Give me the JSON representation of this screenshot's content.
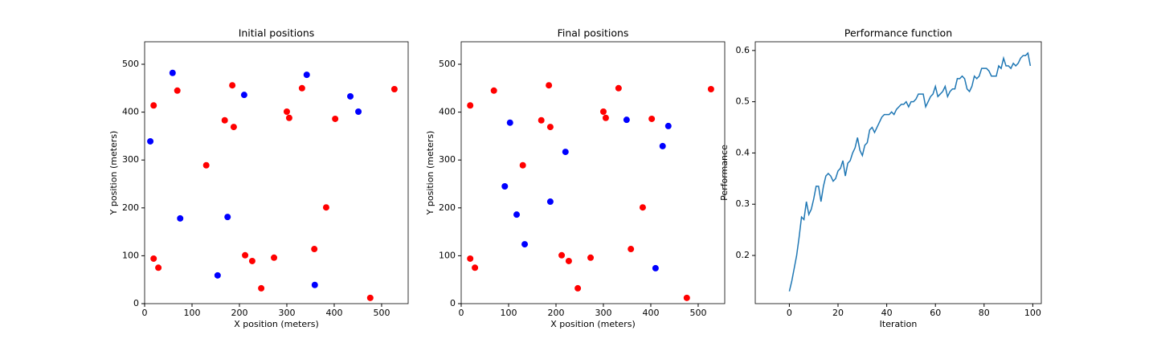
{
  "chart_data": [
    {
      "type": "scatter",
      "title": "Initial positions",
      "x_label": "X position (meters)",
      "y_label": "Y position (meters)",
      "xlim": [
        0,
        556
      ],
      "ylim": [
        0,
        547
      ],
      "xticks": [
        0,
        100,
        200,
        300,
        400,
        500
      ],
      "yticks": [
        0,
        100,
        200,
        300,
        400,
        500
      ],
      "series": [
        {
          "color": "#ff0000",
          "x": [
            19,
            69,
            185,
            169,
            188,
            130,
            300,
            305,
            332,
            402,
            527,
            383,
            358,
            19,
            29,
            212,
            227,
            273,
            246,
            476
          ],
          "y": [
            414,
            445,
            456,
            383,
            369,
            289,
            401,
            388,
            450,
            386,
            448,
            201,
            114,
            94,
            75,
            101,
            89,
            96,
            32,
            12
          ]
        },
        {
          "color": "#0000ff",
          "x": [
            59,
            210,
            342,
            434,
            451,
            12,
            75,
            175,
            154,
            359
          ],
          "y": [
            482,
            436,
            478,
            433,
            401,
            339,
            178,
            181,
            59,
            39
          ]
        }
      ]
    },
    {
      "type": "scatter",
      "title": "Final positions",
      "x_label": "X position (meters)",
      "y_label": "Y position (meters)",
      "xlim": [
        0,
        556
      ],
      "ylim": [
        0,
        547
      ],
      "xticks": [
        0,
        100,
        200,
        300,
        400,
        500
      ],
      "yticks": [
        0,
        100,
        200,
        300,
        400,
        500
      ],
      "series": [
        {
          "color": "#ff0000",
          "x": [
            19,
            69,
            185,
            169,
            188,
            130,
            300,
            305,
            332,
            402,
            527,
            383,
            358,
            19,
            29,
            212,
            227,
            273,
            246,
            476
          ],
          "y": [
            414,
            445,
            456,
            383,
            369,
            289,
            401,
            388,
            450,
            386,
            448,
            201,
            114,
            94,
            75,
            101,
            89,
            96,
            32,
            12
          ]
        },
        {
          "color": "#0000ff",
          "x": [
            103,
            220,
            349,
            437,
            425,
            92,
            117,
            188,
            134,
            410
          ],
          "y": [
            378,
            317,
            384,
            371,
            329,
            245,
            186,
            213,
            124,
            74
          ]
        }
      ]
    },
    {
      "type": "line",
      "title": "Performance function",
      "x_label": "Iteration",
      "y_label": "Performance",
      "xlim": [
        -14,
        103.5
      ],
      "ylim": [
        0.106,
        0.617
      ],
      "xticks": [
        0,
        20,
        40,
        60,
        80,
        100
      ],
      "yticks": [
        0.2,
        0.3,
        0.4,
        0.5,
        0.6
      ],
      "color": "#1f77b4",
      "x": [
        0,
        1,
        2,
        3,
        4,
        5,
        6,
        7,
        8,
        9,
        10,
        11,
        12,
        13,
        14,
        15,
        16,
        17,
        18,
        19,
        20,
        21,
        22,
        23,
        24,
        25,
        26,
        27,
        28,
        29,
        30,
        31,
        32,
        33,
        34,
        35,
        36,
        37,
        38,
        39,
        40,
        41,
        42,
        43,
        44,
        45,
        46,
        47,
        48,
        49,
        50,
        51,
        52,
        53,
        54,
        55,
        56,
        57,
        58,
        59,
        60,
        61,
        62,
        63,
        64,
        65,
        66,
        67,
        68,
        69,
        70,
        71,
        72,
        73,
        74,
        75,
        76,
        77,
        78,
        79,
        80,
        81,
        82,
        83,
        84,
        85,
        86,
        87,
        88,
        89,
        90,
        91,
        92,
        93,
        94,
        95,
        96,
        97,
        98,
        99
      ],
      "values": [
        0.13,
        0.15,
        0.175,
        0.2,
        0.235,
        0.275,
        0.27,
        0.305,
        0.28,
        0.29,
        0.31,
        0.335,
        0.335,
        0.305,
        0.335,
        0.355,
        0.36,
        0.355,
        0.345,
        0.35,
        0.365,
        0.37,
        0.385,
        0.355,
        0.38,
        0.385,
        0.4,
        0.41,
        0.43,
        0.405,
        0.395,
        0.415,
        0.42,
        0.445,
        0.45,
        0.44,
        0.45,
        0.46,
        0.47,
        0.475,
        0.475,
        0.475,
        0.48,
        0.475,
        0.485,
        0.49,
        0.495,
        0.495,
        0.5,
        0.49,
        0.5,
        0.5,
        0.505,
        0.515,
        0.515,
        0.515,
        0.49,
        0.5,
        0.51,
        0.515,
        0.53,
        0.51,
        0.515,
        0.52,
        0.53,
        0.51,
        0.52,
        0.525,
        0.525,
        0.545,
        0.545,
        0.55,
        0.545,
        0.525,
        0.52,
        0.53,
        0.55,
        0.545,
        0.55,
        0.565,
        0.565,
        0.565,
        0.56,
        0.55,
        0.55,
        0.55,
        0.57,
        0.565,
        0.585,
        0.57,
        0.57,
        0.565,
        0.575,
        0.57,
        0.575,
        0.585,
        0.59,
        0.59,
        0.595,
        0.57
      ]
    }
  ]
}
